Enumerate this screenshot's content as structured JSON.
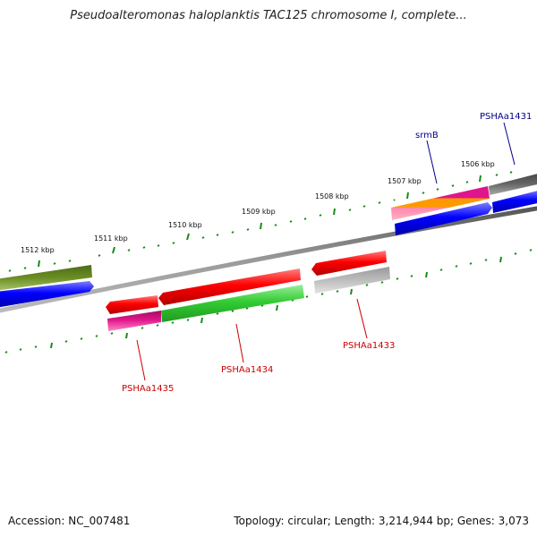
{
  "title": "Pseudoalteromonas haloplanktis TAC125 chromosome I, complete...",
  "footer": {
    "accession": "Accession: NC_007481",
    "summary": "Topology: circular; Length: 3,214,944 bp; Genes: 3,073"
  },
  "scale_labels": [
    "1506 kbp",
    "1507 kbp",
    "1508 kbp",
    "1509 kbp",
    "1510 kbp",
    "1511 kbp",
    "1512 kbp"
  ],
  "gene_labels": [
    "PSHAa1431",
    "srmB",
    "PSHAa1433",
    "PSHAa1434",
    "PSHAa1435"
  ],
  "colors": {
    "backbone": "#808080",
    "tick": "#1a8a1a",
    "blue": "#0000ff",
    "red": "#ff0000",
    "green": "#33cc33",
    "magenta": "#e0158c",
    "olive": "#6b8e23",
    "gray": "#bdbdbd",
    "darkgray": "#666666",
    "orange": "#ff9900",
    "label_blue": "#00008b",
    "label_red": "#cc0000"
  }
}
